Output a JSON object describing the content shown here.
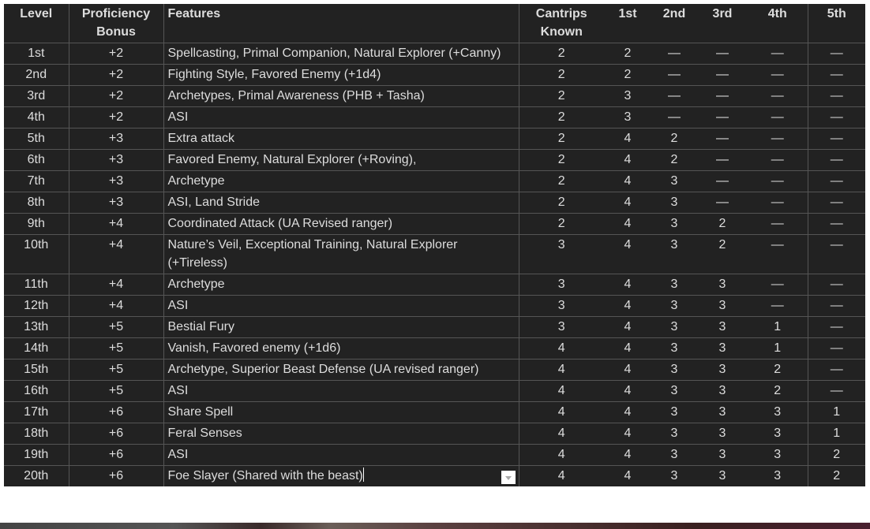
{
  "headers": {
    "level": "Level",
    "prof1": "Proficiency",
    "prof2": "Bonus",
    "features": "Features",
    "cantrips1": "Cantrips",
    "cantrips2": "Known",
    "s1": "1st",
    "s2": "2nd",
    "s3": "3rd",
    "s4": "4th",
    "s5": "5th"
  },
  "rows": [
    [
      "1st",
      "+2",
      "Spellcasting, Primal Companion, Natural Explorer (+Canny)",
      "2",
      "2",
      "—",
      "—",
      "—",
      "—"
    ],
    [
      "2nd",
      "+2",
      "Fighting Style, Favored Enemy (+1d4)",
      "2",
      "2",
      "—",
      "—",
      "—",
      "—"
    ],
    [
      "3rd",
      "+2",
      "Archetypes, Primal Awareness (PHB + Tasha)",
      "2",
      "3",
      "—",
      "—",
      "—",
      "—"
    ],
    [
      "4th",
      "+2",
      "ASI",
      "2",
      "3",
      "—",
      "—",
      "—",
      "—"
    ],
    [
      "5th",
      "+3",
      "Extra attack",
      "2",
      "4",
      "2",
      "—",
      "—",
      "—"
    ],
    [
      "6th",
      "+3",
      "Favored Enemy, Natural Explorer (+Roving),",
      "2",
      "4",
      "2",
      "—",
      "—",
      "—"
    ],
    [
      "7th",
      "+3",
      "Archetype",
      "2",
      "4",
      "3",
      "—",
      "—",
      "—"
    ],
    [
      "8th",
      "+3",
      "ASI, Land Stride",
      "2",
      "4",
      "3",
      "—",
      "—",
      "—"
    ],
    [
      "9th",
      "+4",
      "Coordinated Attack (UA Revised ranger)",
      "2",
      "4",
      "3",
      "2",
      "—",
      "—"
    ],
    [
      "10th",
      "+4",
      "Nature’s Veil, Exceptional Training, Natural Explorer (+Tireless)",
      "3",
      "4",
      "3",
      "2",
      "—",
      "—"
    ],
    [
      "11th",
      "+4",
      "Archetype",
      "3",
      "4",
      "3",
      "3",
      "—",
      "—"
    ],
    [
      "12th",
      "+4",
      "ASI",
      "3",
      "4",
      "3",
      "3",
      "—",
      "—"
    ],
    [
      "13th",
      "+5",
      "Bestial Fury",
      "3",
      "4",
      "3",
      "3",
      "1",
      "—"
    ],
    [
      "14th",
      "+5",
      "Vanish, Favored enemy (+1d6)",
      "4",
      "4",
      "3",
      "3",
      "1",
      "—"
    ],
    [
      "15th",
      "+5",
      "Archetype, Superior Beast Defense (UA revised ranger)",
      "4",
      "4",
      "3",
      "3",
      "2",
      "—"
    ],
    [
      "16th",
      "+5",
      "ASI",
      "4",
      "4",
      "3",
      "3",
      "2",
      "—"
    ],
    [
      "17th",
      "+6",
      "Share Spell",
      "4",
      "4",
      "3",
      "3",
      "3",
      "1"
    ],
    [
      "18th",
      "+6",
      "Feral Senses",
      "4",
      "4",
      "3",
      "3",
      "3",
      "1"
    ],
    [
      "19th",
      "+6",
      "ASI",
      "4",
      "4",
      "3",
      "3",
      "3",
      "2"
    ],
    [
      "20th",
      "+6",
      "Foe Slayer (Shared with the beast)",
      "4",
      "4",
      "3",
      "3",
      "3",
      "2"
    ]
  ]
}
